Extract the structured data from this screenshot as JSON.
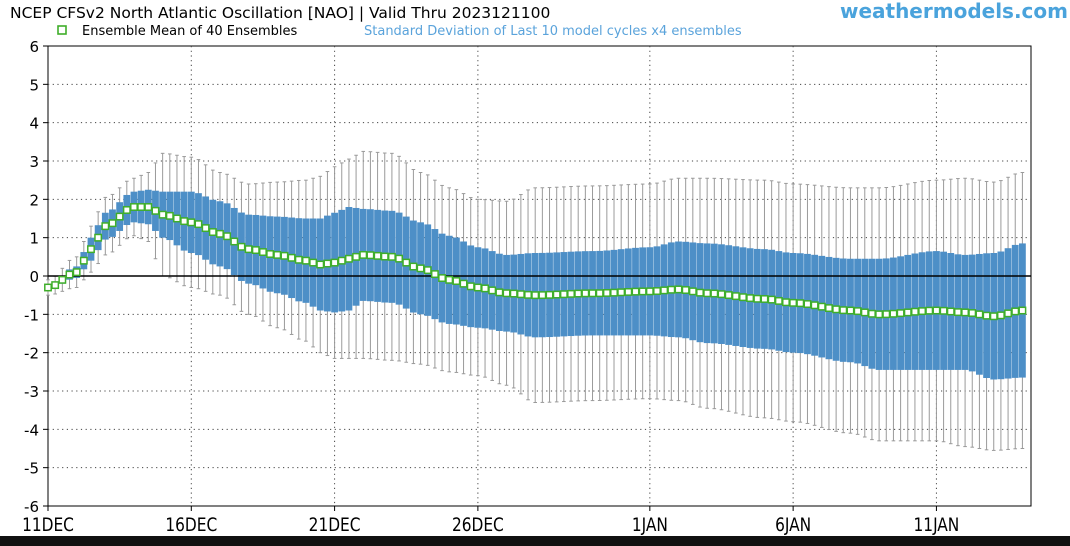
{
  "header": {
    "title": "NCEP CFSv2 North Atlantic Oscillation [NAO] | Valid Thru 2023121100",
    "brand": "weathermodels.com",
    "legend_mean_label": "Ensemble Mean of 40 Ensembles",
    "legend_spread_label": "Standard Deviation of Last 10 model cycles x4 ensembles"
  },
  "colors": {
    "spread_bar": "#4d8fc7",
    "whisker": "#9a9a9a",
    "mean_marker": "#3fae2a",
    "zero_line": "#000000",
    "grid": "#444444",
    "legend_spread_text": "#5aa3db",
    "brand_text": "#4aa3dc"
  },
  "chart_data": {
    "type": "box-and-whisker",
    "title": "NCEP CFSv2 North Atlantic Oscillation [NAO] | Valid Thru 2023121100",
    "ylim": [
      -6,
      6
    ],
    "y_ticks": [
      "6",
      "5",
      "4",
      "3",
      "2",
      "1",
      "0",
      "-1",
      "-2",
      "-3",
      "-4",
      "-5",
      "-6"
    ],
    "x_start": "2023-12-11",
    "x_end": "2024-01-14",
    "x_tick_labels": [
      "11DEC",
      "16DEC",
      "21DEC",
      "26DEC",
      "1JAN",
      "6JAN",
      "11JAN"
    ],
    "x_tick_dates": [
      "2023-12-11",
      "2023-12-16",
      "2023-12-21",
      "2023-12-26",
      "2024-01-01",
      "2024-01-06",
      "2024-01-11"
    ],
    "points_per_day": 4,
    "grid": true,
    "legend": "top-left",
    "mean_control_points": [
      {
        "date": "2023-12-11 00Z",
        "mean": -0.3,
        "sd_half": 0.05,
        "range_half": 0.2
      },
      {
        "date": "2023-12-12 00Z",
        "mean": 0.1,
        "sd_half": 0.15,
        "range_half": 0.4
      },
      {
        "date": "2023-12-12 12Z",
        "mean": 0.7,
        "sd_half": 0.3,
        "range_half": 0.6
      },
      {
        "date": "2023-12-13 00Z",
        "mean": 1.3,
        "sd_half": 0.35,
        "range_half": 0.75
      },
      {
        "date": "2023-12-14 00Z",
        "mean": 1.8,
        "sd_half": 0.4,
        "range_half": 0.75
      },
      {
        "date": "2023-12-14 12Z",
        "mean": 1.8,
        "sd_half": 0.45,
        "range_half": 0.9
      },
      {
        "date": "2023-12-15 00Z",
        "mean": 1.6,
        "sd_half": 0.6,
        "range_half": 1.6
      },
      {
        "date": "2023-12-16 00Z",
        "mean": 1.4,
        "sd_half": 0.8,
        "range_half": 1.7
      },
      {
        "date": "2023-12-17 00Z",
        "mean": 1.1,
        "sd_half": 0.85,
        "range_half": 1.6
      },
      {
        "date": "2023-12-18 00Z",
        "mean": 0.7,
        "sd_half": 0.9,
        "range_half": 1.7
      },
      {
        "date": "2023-12-19 00Z",
        "mean": 0.55,
        "sd_half": 1.0,
        "range_half": 1.9
      },
      {
        "date": "2023-12-20 00Z",
        "mean": 0.4,
        "sd_half": 1.1,
        "range_half": 2.1
      },
      {
        "date": "2023-12-20 12Z",
        "mean": 0.3,
        "sd_half": 1.2,
        "range_half": 2.3
      },
      {
        "date": "2023-12-21 00Z",
        "mean": 0.35,
        "sd_half": 1.3,
        "range_half": 2.5
      },
      {
        "date": "2023-12-21 12Z",
        "mean": 0.45,
        "sd_half": 1.35,
        "range_half": 2.6
      },
      {
        "date": "2023-12-22 00Z",
        "mean": 0.55,
        "sd_half": 1.2,
        "range_half": 2.7
      },
      {
        "date": "2023-12-23 00Z",
        "mean": 0.5,
        "sd_half": 1.2,
        "range_half": 2.7
      },
      {
        "date": "2023-12-24 00Z",
        "mean": 0.2,
        "sd_half": 1.2,
        "range_half": 2.5
      },
      {
        "date": "2023-12-25 00Z",
        "mean": -0.1,
        "sd_half": 1.15,
        "range_half": 2.4
      },
      {
        "date": "2023-12-26 00Z",
        "mean": -0.3,
        "sd_half": 1.05,
        "range_half": 2.3
      },
      {
        "date": "2023-12-27 00Z",
        "mean": -0.45,
        "sd_half": 1.0,
        "range_half": 2.4
      },
      {
        "date": "2023-12-28 00Z",
        "mean": -0.5,
        "sd_half": 1.1,
        "range_half": 2.8
      },
      {
        "date": "2023-12-30 00Z",
        "mean": -0.45,
        "sd_half": 1.1,
        "range_half": 2.8
      },
      {
        "date": "2024-01-01 00Z",
        "mean": -0.4,
        "sd_half": 1.15,
        "range_half": 2.8
      },
      {
        "date": "2024-01-02 00Z",
        "mean": -0.35,
        "sd_half": 1.25,
        "range_half": 2.9
      },
      {
        "date": "2024-01-03 00Z",
        "mean": -0.45,
        "sd_half": 1.3,
        "range_half": 3.0
      },
      {
        "date": "2024-01-05 00Z",
        "mean": -0.6,
        "sd_half": 1.3,
        "range_half": 3.1
      },
      {
        "date": "2024-01-06 00Z",
        "mean": -0.7,
        "sd_half": 1.3,
        "range_half": 3.1
      },
      {
        "date": "2024-01-08 00Z",
        "mean": -0.9,
        "sd_half": 1.35,
        "range_half": 3.2
      },
      {
        "date": "2024-01-09 00Z",
        "mean": -1.0,
        "sd_half": 1.45,
        "range_half": 3.3
      },
      {
        "date": "2024-01-11 00Z",
        "mean": -0.9,
        "sd_half": 1.55,
        "range_half": 3.4
      },
      {
        "date": "2024-01-12 00Z",
        "mean": -0.95,
        "sd_half": 1.5,
        "range_half": 3.5
      },
      {
        "date": "2024-01-13 00Z",
        "mean": -1.05,
        "sd_half": 1.65,
        "range_half": 3.5
      },
      {
        "date": "2024-01-14 00Z",
        "mean": -0.9,
        "sd_half": 1.75,
        "range_half": 3.6
      }
    ]
  }
}
